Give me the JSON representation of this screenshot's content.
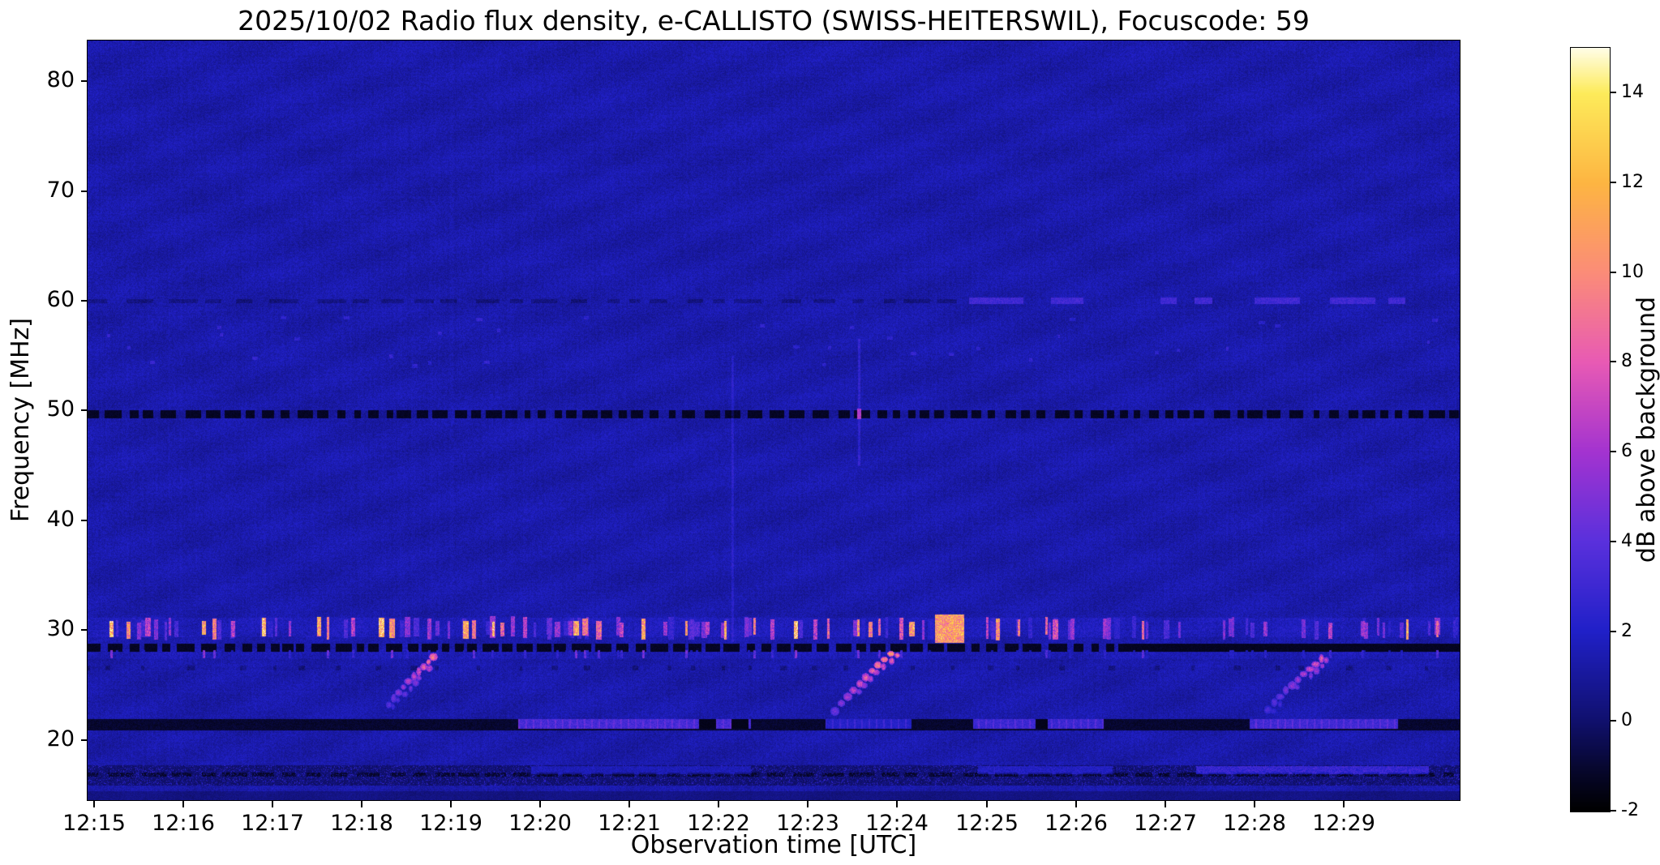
{
  "chart_data": {
    "type": "heatmap",
    "subtype": "radio-spectrogram",
    "title": "2025/10/02  Radio flux density, e-CALLISTO (SWISS-HEITERSWIL), Focuscode: 59",
    "date": "2025/10/02",
    "station": "SWISS-HEITERSWIL",
    "focuscode": "59",
    "xlabel": "Observation time [UTC]",
    "ylabel": "Frequency [MHz]",
    "x_tick_labels": [
      "12:15",
      "12:16",
      "12:17",
      "12:18",
      "12:19",
      "12:20",
      "12:21",
      "12:22",
      "12:23",
      "12:24",
      "12:25",
      "12:26",
      "12:27",
      "12:28",
      "12:29"
    ],
    "x_tick_minutes": [
      15,
      16,
      17,
      18,
      19,
      20,
      21,
      22,
      23,
      24,
      25,
      26,
      27,
      28,
      29
    ],
    "x_range_minutes": [
      14.93,
      30.3
    ],
    "y_tick_values": [
      80,
      70,
      60,
      50,
      40,
      30,
      20
    ],
    "y_range_mhz": [
      14.5,
      83.7
    ],
    "grid": false,
    "colorbar": {
      "label": "dB above background",
      "ticks": [
        14,
        12,
        10,
        8,
        6,
        4,
        2,
        0,
        -2
      ],
      "vmin": -2,
      "vmax": 15,
      "colormap": [
        [
          0.0,
          "#000000"
        ],
        [
          0.055,
          "#07072e"
        ],
        [
          0.118,
          "#10106e"
        ],
        [
          0.235,
          "#2020c8"
        ],
        [
          0.353,
          "#5a30dc"
        ],
        [
          0.47,
          "#a333d0"
        ],
        [
          0.588,
          "#e85ab4"
        ],
        [
          0.705,
          "#fb8c78"
        ],
        [
          0.823,
          "#fdb542"
        ],
        [
          0.94,
          "#fdeb5a"
        ],
        [
          1.0,
          "#fffde8"
        ]
      ]
    },
    "background": {
      "base_db": 0.55,
      "noise_db": 1.15
    },
    "features": {
      "dark_interference_channels_mhz": [
        49.7,
        28.45,
        26.6,
        21.4,
        16.85
      ],
      "solid_dark_28mhz_from_min": 26.55,
      "dark_60mhz_left_until_min": 24.7,
      "rfi_bursts_29_31mhz": [
        [
          15.19,
          13
        ],
        [
          15.38,
          11
        ],
        [
          15.6,
          7
        ],
        [
          15.85,
          6
        ],
        [
          16.23,
          12
        ],
        [
          16.35,
          10
        ],
        [
          16.56,
          7
        ],
        [
          16.9,
          13
        ],
        [
          17.19,
          6
        ],
        [
          17.52,
          12
        ],
        [
          17.62,
          10
        ],
        [
          17.9,
          7
        ],
        [
          18.22,
          13
        ],
        [
          18.34,
          11
        ],
        [
          18.75,
          6
        ],
        [
          19.16,
          12
        ],
        [
          19.25,
          10
        ],
        [
          19.47,
          13
        ],
        [
          19.57,
          9
        ],
        [
          19.83,
          7
        ],
        [
          20.19,
          6
        ],
        [
          20.4,
          12
        ],
        [
          20.5,
          10
        ],
        [
          20.65,
          9
        ],
        [
          20.91,
          7
        ],
        [
          21.15,
          12
        ],
        [
          21.4,
          6
        ],
        [
          21.63,
          11
        ],
        [
          21.87,
          7
        ],
        [
          22.07,
          12
        ],
        [
          22.4,
          10
        ],
        [
          22.6,
          7
        ],
        [
          22.86,
          13
        ],
        [
          23.08,
          7
        ],
        [
          23.22,
          9
        ],
        [
          23.56,
          11
        ],
        [
          23.7,
          10
        ],
        [
          23.8,
          9
        ],
        [
          24.04,
          8
        ],
        [
          24.16,
          12
        ],
        [
          25.0,
          7
        ],
        [
          25.12,
          11
        ],
        [
          25.36,
          10
        ],
        [
          25.67,
          9
        ],
        [
          25.77,
          8
        ],
        [
          25.96,
          6
        ],
        [
          26.32,
          6
        ],
        [
          26.75,
          9
        ],
        [
          27.16,
          5
        ],
        [
          27.76,
          5
        ],
        [
          28.12,
          6
        ],
        [
          28.55,
          5
        ],
        [
          28.85,
          7
        ],
        [
          29.21,
          6
        ],
        [
          29.45,
          5
        ],
        [
          29.71,
          12
        ],
        [
          30.05,
          9
        ]
      ],
      "minor_burst_count": 80,
      "minor_burst_db_range": [
        2.2,
        6.0
      ],
      "burst_blob": {
        "t_start": 24.42,
        "t_end": 24.74,
        "f_low": 28.9,
        "f_high": 31.4,
        "db": 12
      },
      "drifting_sweeps": [
        {
          "t_start": 18.3,
          "t_end": 18.8,
          "f_start": 23.2,
          "f_end": 27.6,
          "peak_db": 10.0
        },
        {
          "t_start": 23.3,
          "t_end": 23.92,
          "f_start": 22.6,
          "f_end": 27.9,
          "peak_db": 11.5
        },
        {
          "t_start": 28.15,
          "t_end": 28.75,
          "f_start": 22.8,
          "f_end": 27.4,
          "peak_db": 8.5
        }
      ],
      "blue_band_21_5_segments": [
        [
          19.75,
          22.35,
          3.4
        ],
        [
          23.2,
          24.15,
          2.2
        ],
        [
          24.85,
          26.3,
          3.0
        ],
        [
          27.95,
          29.6,
          3.2
        ]
      ],
      "blue_band_black_notches": [
        [
          21.78,
          21.96
        ],
        [
          22.14,
          22.32
        ],
        [
          25.55,
          25.68
        ]
      ],
      "dashes_60mhz": [
        [
          24.8,
          25.4
        ],
        [
          25.72,
          26.08
        ],
        [
          26.95,
          27.12
        ],
        [
          27.33,
          27.52
        ],
        [
          28.0,
          28.5
        ],
        [
          28.85,
          29.35
        ],
        [
          29.5,
          29.68
        ]
      ],
      "bottom_mottled_band": {
        "f_low": 15.9,
        "f_high": 17.7
      },
      "low_band_17mhz_segments": [
        [
          19.9,
          22.35,
          1.9
        ],
        [
          24.9,
          26.4,
          2.3
        ],
        [
          27.35,
          29.95,
          3.2
        ]
      ],
      "faint_columns": [
        {
          "t": 22.15,
          "f_low": 29.0,
          "f_high": 55.0,
          "boost": 0.55
        },
        {
          "t": 23.57,
          "f_low": 45.0,
          "f_high": 56.5,
          "boost": 0.8,
          "dot_f": 49.7,
          "dot_db": 6.5
        }
      ],
      "speckle_band_55mhz": {
        "f_low": 54.0,
        "f_high": 58.5,
        "count": 36,
        "boost": 1.0
      }
    }
  }
}
